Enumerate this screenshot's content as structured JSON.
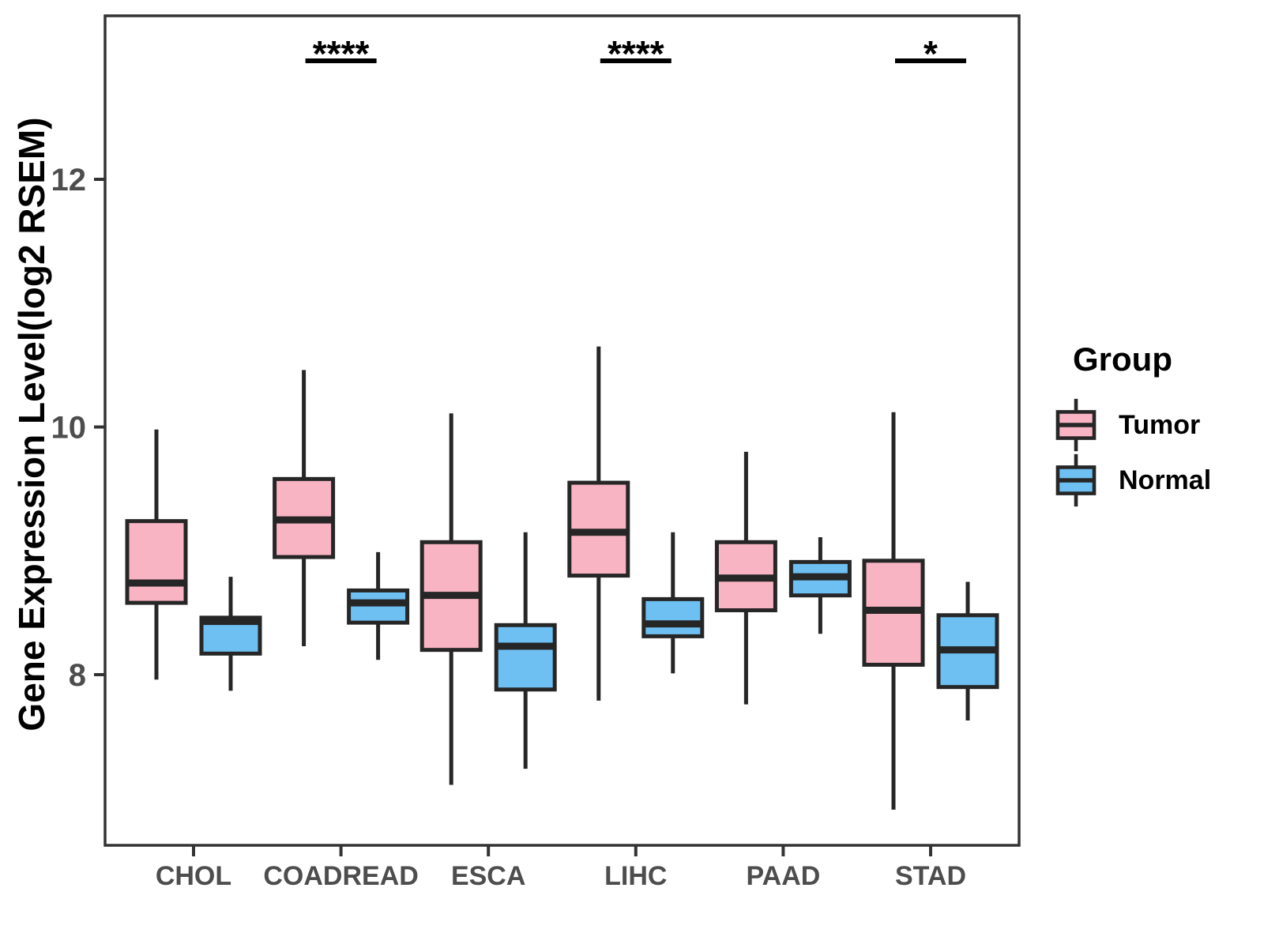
{
  "chart_data": {
    "type": "boxplot",
    "title": "",
    "xlabel": "",
    "ylabel": "Gene Expression Level(log2 RSEM)",
    "categories": [
      "CHOL",
      "COADREAD",
      "ESCA",
      "LIHC",
      "PAAD",
      "STAD"
    ],
    "yticks": [
      8,
      10,
      12
    ],
    "ylim": [
      6.6,
      13.3
    ],
    "grid": false,
    "legend": {
      "title": "Group",
      "position": "right"
    },
    "series": [
      {
        "name": "Tumor",
        "color": "#F9B4C3",
        "boxes": [
          {
            "category": "CHOL",
            "whisker_low": 7.96,
            "q1": 8.58,
            "median": 8.74,
            "q3": 9.24,
            "whisker_high": 9.98
          },
          {
            "category": "COADREAD",
            "whisker_low": 8.23,
            "q1": 8.95,
            "median": 9.25,
            "q3": 9.58,
            "whisker_high": 10.46
          },
          {
            "category": "ESCA",
            "whisker_low": 7.11,
            "q1": 8.2,
            "median": 8.64,
            "q3": 9.07,
            "whisker_high": 10.11
          },
          {
            "category": "LIHC",
            "whisker_low": 7.79,
            "q1": 8.8,
            "median": 9.15,
            "q3": 9.55,
            "whisker_high": 10.65
          },
          {
            "category": "PAAD",
            "whisker_low": 7.76,
            "q1": 8.52,
            "median": 8.78,
            "q3": 9.07,
            "whisker_high": 9.8
          },
          {
            "category": "STAD",
            "whisker_low": 6.91,
            "q1": 8.08,
            "median": 8.52,
            "q3": 8.92,
            "whisker_high": 10.12
          }
        ]
      },
      {
        "name": "Normal",
        "color": "#6EBFF2",
        "boxes": [
          {
            "category": "CHOL",
            "whisker_low": 7.87,
            "q1": 8.17,
            "median": 8.43,
            "q3": 8.46,
            "whisker_high": 8.79
          },
          {
            "category": "COADREAD",
            "whisker_low": 8.12,
            "q1": 8.42,
            "median": 8.58,
            "q3": 8.68,
            "whisker_high": 8.99
          },
          {
            "category": "ESCA",
            "whisker_low": 7.24,
            "q1": 7.88,
            "median": 8.23,
            "q3": 8.4,
            "whisker_high": 9.15
          },
          {
            "category": "LIHC",
            "whisker_low": 8.01,
            "q1": 8.31,
            "median": 8.41,
            "q3": 8.61,
            "whisker_high": 9.15
          },
          {
            "category": "PAAD",
            "whisker_low": 8.33,
            "q1": 8.64,
            "median": 8.79,
            "q3": 8.91,
            "whisker_high": 9.11
          },
          {
            "category": "STAD",
            "whisker_low": 7.63,
            "q1": 7.9,
            "median": 8.2,
            "q3": 8.48,
            "whisker_high": 8.75
          }
        ]
      }
    ],
    "annotations": [
      {
        "category": "COADREAD",
        "label": "****"
      },
      {
        "category": "LIHC",
        "label": "****"
      },
      {
        "category": "STAD",
        "label": "*"
      }
    ],
    "styles": {
      "box_stroke": "#262626",
      "axis_color": "#333333",
      "tick_label_color": "#4D4D4D",
      "significance_color": "#000000"
    }
  }
}
